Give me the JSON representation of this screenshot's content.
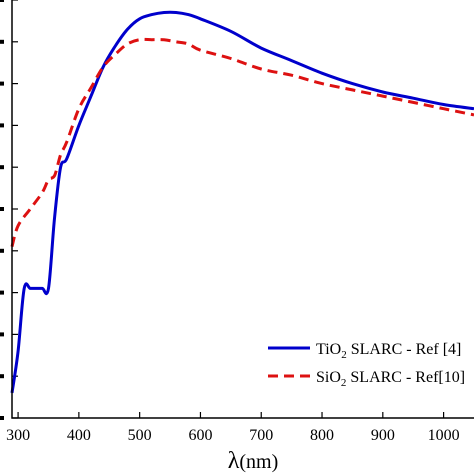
{
  "chart_data": {
    "type": "line",
    "title": "",
    "xlabel_symbol": "λ",
    "xlabel_unit": "(nm)",
    "ylabel": "",
    "xlim": [
      290,
      1050
    ],
    "ylim": [
      0,
      1
    ],
    "x_ticks": [
      300,
      400,
      500,
      600,
      700,
      800,
      900,
      1000
    ],
    "y_tick_count": 11,
    "grid": false,
    "legend_position": "bottom-right",
    "series": [
      {
        "legend_base": "TiO",
        "legend_sub": "2",
        "legend_rest": " SLARC - Ref [4]",
        "color": "#0000cc",
        "dash": "solid",
        "x": [
          290,
          300,
          310,
          320,
          330,
          340,
          350,
          360,
          370,
          380,
          400,
          420,
          440,
          460,
          480,
          500,
          520,
          540,
          560,
          580,
          600,
          650,
          700,
          750,
          800,
          850,
          900,
          950,
          1000,
          1050
        ],
        "y": [
          0.06,
          0.16,
          0.31,
          0.31,
          0.31,
          0.31,
          0.31,
          0.48,
          0.6,
          0.62,
          0.7,
          0.77,
          0.84,
          0.89,
          0.93,
          0.955,
          0.965,
          0.97,
          0.97,
          0.965,
          0.955,
          0.925,
          0.885,
          0.855,
          0.825,
          0.8,
          0.78,
          0.765,
          0.75,
          0.74
        ]
      },
      {
        "legend_base": "SiO",
        "legend_sub": "2",
        "legend_rest": " SLARC - Ref[10]",
        "color": "#dd1111",
        "dash": "dashed",
        "x": [
          290,
          300,
          320,
          340,
          350,
          360,
          370,
          380,
          400,
          420,
          440,
          460,
          480,
          500,
          520,
          540,
          560,
          580,
          600,
          650,
          700,
          750,
          800,
          850,
          900,
          950,
          1000,
          1050
        ],
        "y": [
          0.41,
          0.46,
          0.5,
          0.54,
          0.57,
          0.58,
          0.63,
          0.66,
          0.74,
          0.79,
          0.84,
          0.87,
          0.895,
          0.905,
          0.905,
          0.905,
          0.9,
          0.895,
          0.88,
          0.86,
          0.835,
          0.82,
          0.8,
          0.785,
          0.77,
          0.755,
          0.74,
          0.725
        ]
      }
    ]
  }
}
